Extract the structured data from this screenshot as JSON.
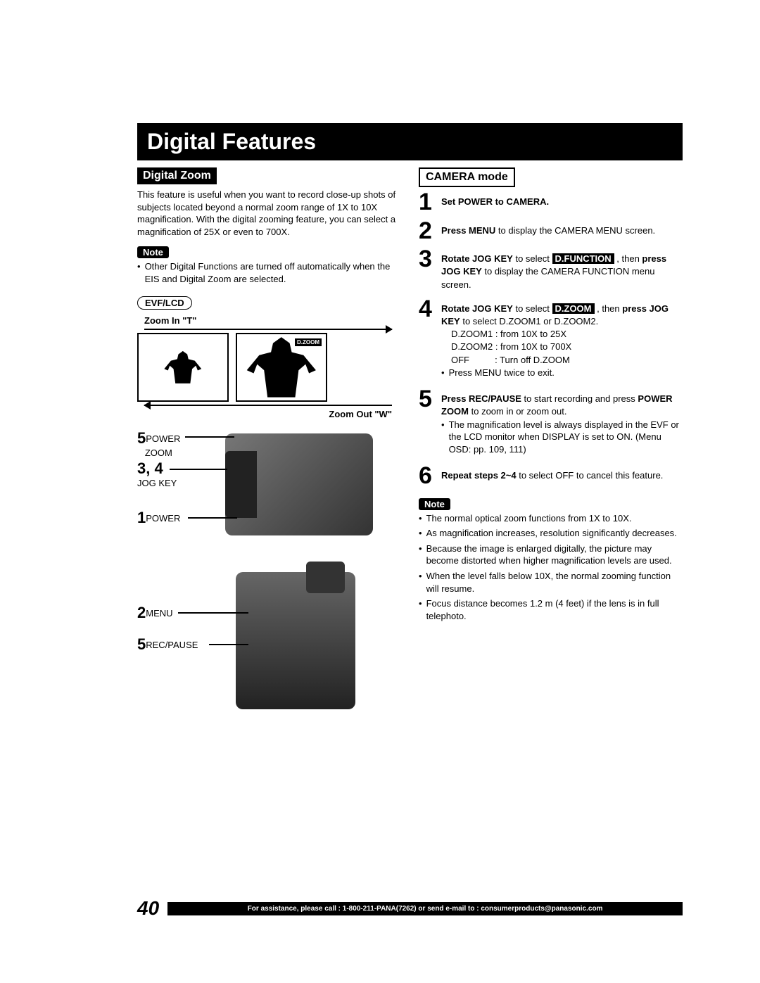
{
  "page_title": "Digital Features",
  "page_number": "40",
  "footer_assist": "For assistance, please call : 1-800-211-PANA(7262) or send e-mail to : consumerproducts@panasonic.com",
  "left": {
    "section_label": "Digital Zoom",
    "intro": "This feature is useful when you want to record close-up shots of subjects located beyond a normal zoom range of 1X to 10X magnification. With the digital zooming feature, you can select a magnification of 25X or even to 700X.",
    "note_label": "Note",
    "note_bullet": "Other Digital Functions are turned off automatically when the EIS and Digital Zoom are selected.",
    "evf_label": "EVF/LCD",
    "zoom_in": "Zoom In \"T\"",
    "zoom_out": "Zoom Out \"W\"",
    "dzoom_badge": "D.ZOOM",
    "callouts": {
      "power_zoom_num": "5",
      "power_zoom": "POWER",
      "power_zoom2": "ZOOM",
      "jogkey_num": "3, 4",
      "jogkey": "JOG KEY",
      "power_num": "1",
      "power": "POWER",
      "menu_num": "2",
      "menu": "MENU",
      "recpause_num": "5",
      "recpause": "REC/PAUSE"
    }
  },
  "right": {
    "section_label": "CAMERA mode",
    "steps": [
      {
        "n": "1",
        "body": "<b>Set POWER to CAMERA.</b>"
      },
      {
        "n": "2",
        "body": "<b>Press MENU</b> to display the CAMERA MENU screen."
      },
      {
        "n": "3",
        "body": "<b>Rotate JOG KEY</b> to select <span class='inv'>D.FUNCTION</span> , then <b>press JOG KEY</b> to display the CAMERA FUNCTION menu screen."
      },
      {
        "n": "4",
        "body": "<b>Rotate JOG KEY</b> to select <span class='inv'>D.ZOOM</span> , then <b>press JOG KEY</b> to select D.ZOOM1 or D.ZOOM2.<div class='indent'>D.ZOOM1 : from 10X to 25X</div><div class='indent'>D.ZOOM2 : from 10X to 700X</div><div class='indent'>OFF&nbsp;&nbsp;&nbsp;&nbsp;&nbsp;&nbsp;&nbsp;&nbsp;&nbsp;&nbsp;: Turn off D.ZOOM</div><div class='bullet'>Press MENU twice to exit.</div>"
      },
      {
        "n": "5",
        "body": "<b>Press REC/PAUSE</b> to start recording and press <b>POWER ZOOM</b> to zoom in or zoom out.<div class='bullet'>The magnification level is always displayed in the EVF or the LCD monitor when DISPLAY is set to ON. (Menu OSD: pp. 109, 111)</div>"
      },
      {
        "n": "6",
        "body": "<b>Repeat steps 2~4</b> to select OFF to cancel this feature."
      }
    ],
    "note_label": "Note",
    "notes": [
      "The normal optical zoom functions from 1X to 10X.",
      "As magnification increases, resolution significantly decreases.",
      "Because the image is enlarged digitally, the picture may become distorted when higher magnification levels are used.",
      "When the level falls below 10X, the normal zooming function will resume.",
      "Focus distance becomes 1.2 m (4 feet) if the lens is in full telephoto."
    ]
  }
}
